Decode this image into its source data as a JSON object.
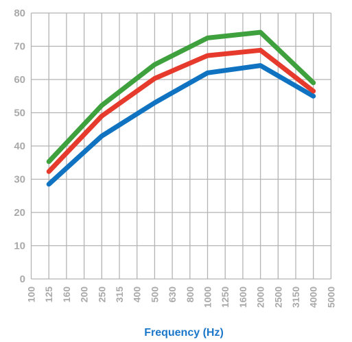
{
  "chart_data": {
    "type": "line",
    "title": "",
    "xlabel": "Frequency (Hz)",
    "ylabel": "",
    "categories": [
      "100",
      "125",
      "160",
      "200",
      "250",
      "315",
      "400",
      "500",
      "630",
      "800",
      "1000",
      "1250",
      "1600",
      "2000",
      "2500",
      "3150",
      "4000",
      "5000"
    ],
    "ylim": [
      0,
      80
    ],
    "yticks": [
      0,
      10,
      20,
      30,
      40,
      50,
      60,
      70,
      80
    ],
    "grid": true,
    "legend": "none",
    "series": [
      {
        "color": "#0f73c2",
        "x": [
          "125",
          "250",
          "500",
          "1000",
          "2000",
          "4000"
        ],
        "values": [
          28.5,
          43,
          53,
          62,
          64.2,
          55
        ]
      },
      {
        "color": "#e53a2c",
        "x": [
          "125",
          "250",
          "500",
          "1000",
          "2000",
          "4000"
        ],
        "values": [
          32.3,
          49,
          60.3,
          67.2,
          68.8,
          56.5
        ]
      },
      {
        "color": "#3ea13d",
        "x": [
          "125",
          "250",
          "500",
          "1000",
          "2000",
          "4000"
        ],
        "values": [
          35.3,
          52.2,
          64.5,
          72.5,
          74.2,
          59
        ]
      }
    ]
  }
}
